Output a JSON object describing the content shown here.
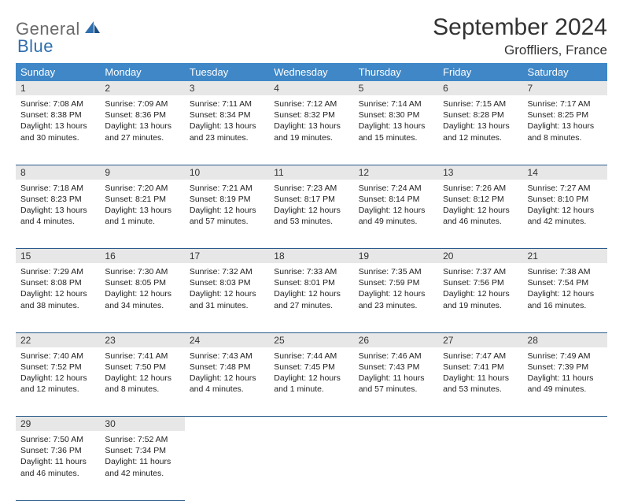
{
  "brand": {
    "part1": "General",
    "part2": "Blue"
  },
  "title": "September 2024",
  "location": "Groffliers, France",
  "colors": {
    "header_bg": "#3f87c7",
    "daynum_bg": "#e7e7e7",
    "rule": "#2a5a8a",
    "logo_gray": "#6a6a6a",
    "logo_blue": "#2f6fad"
  },
  "weekdays": [
    "Sunday",
    "Monday",
    "Tuesday",
    "Wednesday",
    "Thursday",
    "Friday",
    "Saturday"
  ],
  "weeks": [
    [
      {
        "n": "1",
        "sr": "7:08 AM",
        "ss": "8:38 PM",
        "dl": "13 hours and 30 minutes."
      },
      {
        "n": "2",
        "sr": "7:09 AM",
        "ss": "8:36 PM",
        "dl": "13 hours and 27 minutes."
      },
      {
        "n": "3",
        "sr": "7:11 AM",
        "ss": "8:34 PM",
        "dl": "13 hours and 23 minutes."
      },
      {
        "n": "4",
        "sr": "7:12 AM",
        "ss": "8:32 PM",
        "dl": "13 hours and 19 minutes."
      },
      {
        "n": "5",
        "sr": "7:14 AM",
        "ss": "8:30 PM",
        "dl": "13 hours and 15 minutes."
      },
      {
        "n": "6",
        "sr": "7:15 AM",
        "ss": "8:28 PM",
        "dl": "13 hours and 12 minutes."
      },
      {
        "n": "7",
        "sr": "7:17 AM",
        "ss": "8:25 PM",
        "dl": "13 hours and 8 minutes."
      }
    ],
    [
      {
        "n": "8",
        "sr": "7:18 AM",
        "ss": "8:23 PM",
        "dl": "13 hours and 4 minutes."
      },
      {
        "n": "9",
        "sr": "7:20 AM",
        "ss": "8:21 PM",
        "dl": "13 hours and 1 minute."
      },
      {
        "n": "10",
        "sr": "7:21 AM",
        "ss": "8:19 PM",
        "dl": "12 hours and 57 minutes."
      },
      {
        "n": "11",
        "sr": "7:23 AM",
        "ss": "8:17 PM",
        "dl": "12 hours and 53 minutes."
      },
      {
        "n": "12",
        "sr": "7:24 AM",
        "ss": "8:14 PM",
        "dl": "12 hours and 49 minutes."
      },
      {
        "n": "13",
        "sr": "7:26 AM",
        "ss": "8:12 PM",
        "dl": "12 hours and 46 minutes."
      },
      {
        "n": "14",
        "sr": "7:27 AM",
        "ss": "8:10 PM",
        "dl": "12 hours and 42 minutes."
      }
    ],
    [
      {
        "n": "15",
        "sr": "7:29 AM",
        "ss": "8:08 PM",
        "dl": "12 hours and 38 minutes."
      },
      {
        "n": "16",
        "sr": "7:30 AM",
        "ss": "8:05 PM",
        "dl": "12 hours and 34 minutes."
      },
      {
        "n": "17",
        "sr": "7:32 AM",
        "ss": "8:03 PM",
        "dl": "12 hours and 31 minutes."
      },
      {
        "n": "18",
        "sr": "7:33 AM",
        "ss": "8:01 PM",
        "dl": "12 hours and 27 minutes."
      },
      {
        "n": "19",
        "sr": "7:35 AM",
        "ss": "7:59 PM",
        "dl": "12 hours and 23 minutes."
      },
      {
        "n": "20",
        "sr": "7:37 AM",
        "ss": "7:56 PM",
        "dl": "12 hours and 19 minutes."
      },
      {
        "n": "21",
        "sr": "7:38 AM",
        "ss": "7:54 PM",
        "dl": "12 hours and 16 minutes."
      }
    ],
    [
      {
        "n": "22",
        "sr": "7:40 AM",
        "ss": "7:52 PM",
        "dl": "12 hours and 12 minutes."
      },
      {
        "n": "23",
        "sr": "7:41 AM",
        "ss": "7:50 PM",
        "dl": "12 hours and 8 minutes."
      },
      {
        "n": "24",
        "sr": "7:43 AM",
        "ss": "7:48 PM",
        "dl": "12 hours and 4 minutes."
      },
      {
        "n": "25",
        "sr": "7:44 AM",
        "ss": "7:45 PM",
        "dl": "12 hours and 1 minute."
      },
      {
        "n": "26",
        "sr": "7:46 AM",
        "ss": "7:43 PM",
        "dl": "11 hours and 57 minutes."
      },
      {
        "n": "27",
        "sr": "7:47 AM",
        "ss": "7:41 PM",
        "dl": "11 hours and 53 minutes."
      },
      {
        "n": "28",
        "sr": "7:49 AM",
        "ss": "7:39 PM",
        "dl": "11 hours and 49 minutes."
      }
    ],
    [
      {
        "n": "29",
        "sr": "7:50 AM",
        "ss": "7:36 PM",
        "dl": "11 hours and 46 minutes."
      },
      {
        "n": "30",
        "sr": "7:52 AM",
        "ss": "7:34 PM",
        "dl": "11 hours and 42 minutes."
      },
      null,
      null,
      null,
      null,
      null
    ]
  ],
  "labels": {
    "sunrise": "Sunrise: ",
    "sunset": "Sunset: ",
    "daylight": "Daylight: "
  }
}
